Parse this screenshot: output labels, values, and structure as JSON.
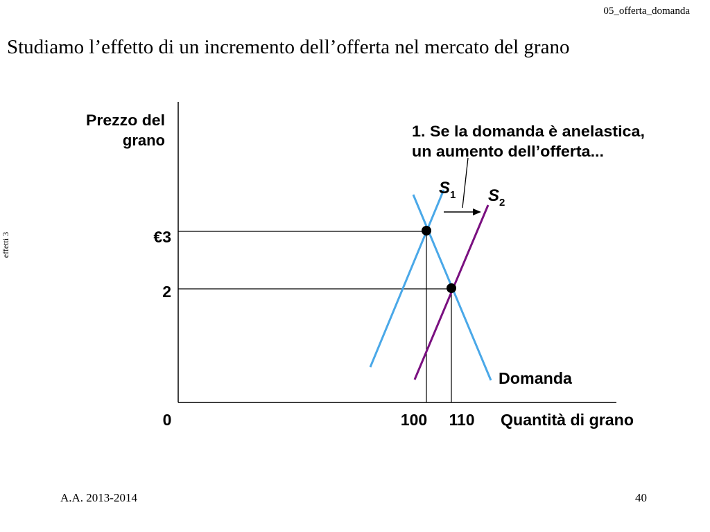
{
  "header": {
    "file_label": "05_offerta_domanda"
  },
  "title": "Studiamo l’effetto di un incremento dell’offerta nel mercato del grano",
  "side_label": "effetti 3",
  "footer": {
    "year": "A.A. 2013-2014",
    "page": "40"
  },
  "colors": {
    "supply1": "#4aa8e8",
    "demand": "#4aa8e8",
    "supply2": "#7a1080",
    "axis": "#000000"
  },
  "diagram": {
    "y_axis_label_line1": "Prezzo del",
    "y_axis_label_line2": "grano",
    "x_axis_label": "Quantità di grano",
    "origin_label": "0",
    "price_high_label": "€3",
    "price_low_label": "2",
    "qty_low_label": "100",
    "qty_high_label": "110",
    "annotation_line1": "1. Se la domanda è anelastica,",
    "annotation_line2": "un aumento dell’offerta...",
    "s1_letter": "S",
    "s1_sub": "1",
    "s2_letter": "S",
    "s2_sub": "2",
    "demand_label": "Domanda"
  }
}
